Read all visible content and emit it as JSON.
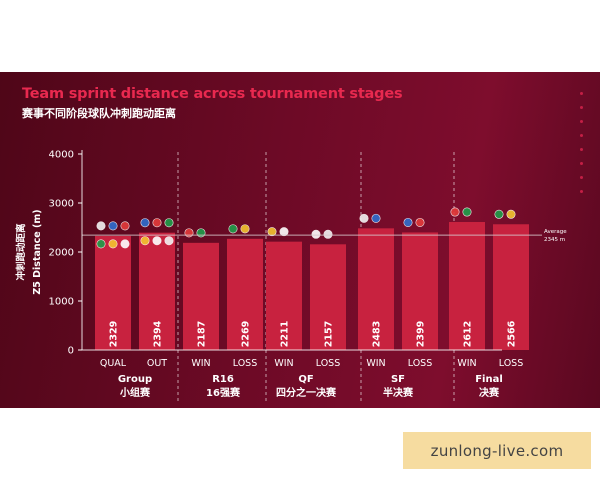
{
  "chart_data": {
    "type": "bar",
    "title": "Team sprint distance across tournament stages",
    "subtitle": "赛事不同阶段球队冲刺跑动距离",
    "ylabel_cn": "冲刺跑动距离",
    "ylabel": "Z5 Distance (m)",
    "ylim": [
      0,
      4000
    ],
    "yticks": [
      0,
      1000,
      2000,
      3000,
      4000
    ],
    "average": {
      "label": "Average",
      "value": 2345,
      "value_label": "2345 m"
    },
    "groups": [
      {
        "name": "Group",
        "name_cn": "小组赛",
        "categories": [
          "QUAL",
          "OUT"
        ]
      },
      {
        "name": "R16",
        "name_cn": "16强赛",
        "categories": [
          "WIN",
          "LOSS"
        ]
      },
      {
        "name": "QF",
        "name_cn": "四分之一决赛",
        "categories": [
          "WIN",
          "LOSS"
        ]
      },
      {
        "name": "SF",
        "name_cn": "半决赛",
        "categories": [
          "WIN",
          "LOSS"
        ]
      },
      {
        "name": "Final",
        "name_cn": "决赛",
        "categories": [
          "WIN",
          "LOSS"
        ]
      }
    ],
    "categories": [
      "QUAL",
      "OUT",
      "WIN",
      "LOSS",
      "WIN",
      "LOSS",
      "WIN",
      "LOSS",
      "WIN",
      "LOSS"
    ],
    "values": [
      2329,
      2394,
      2187,
      2269,
      2211,
      2157,
      2483,
      2399,
      2612,
      2566
    ],
    "bar_color": "#c8223f",
    "average_color": "#d8c8cc",
    "title_color": "#e8294f"
  },
  "watermark": "zunlong-live.com"
}
